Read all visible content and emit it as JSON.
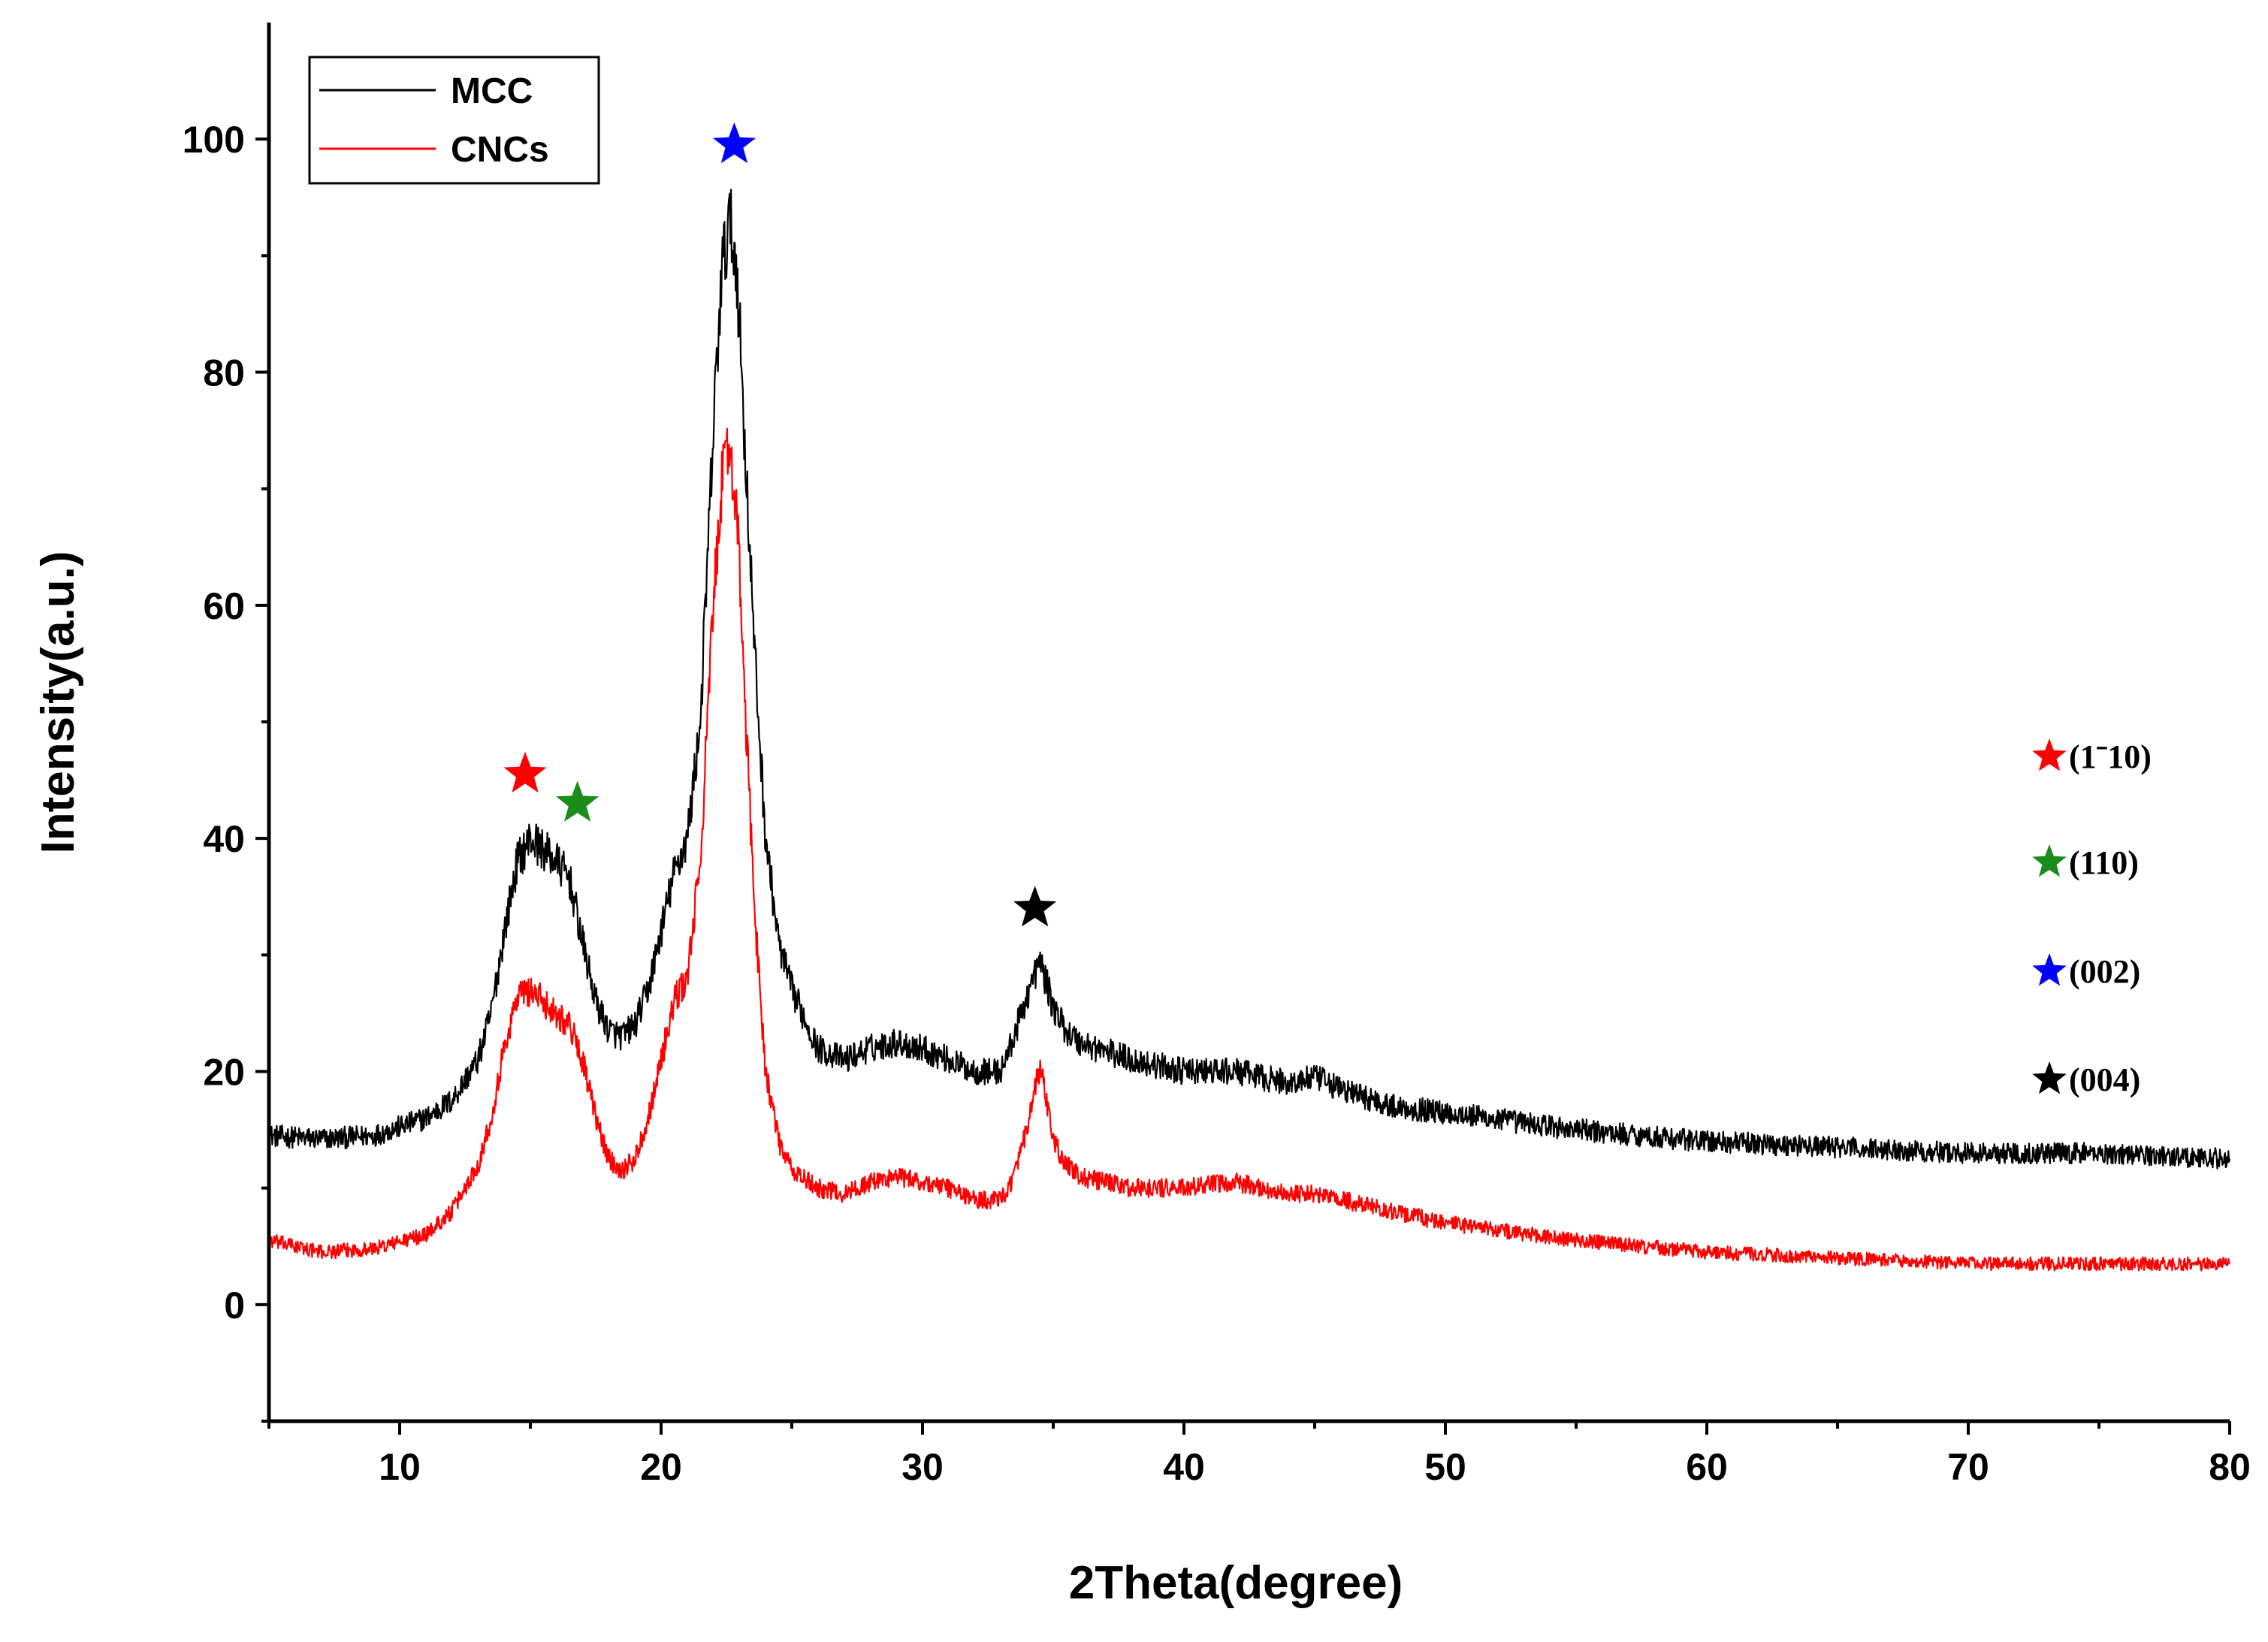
{
  "chart_data": {
    "type": "line",
    "title": "",
    "xlabel": "2Theta(degree)",
    "ylabel": "Intensity(a.u.)",
    "xlim": [
      5,
      80
    ],
    "ylim": [
      -10,
      110
    ],
    "xticks": [
      10,
      20,
      30,
      40,
      50,
      60,
      70,
      80
    ],
    "yticks": [
      0,
      20,
      40,
      60,
      80,
      100
    ],
    "grid": false,
    "legend_position": "top-left",
    "series": [
      {
        "name": "MCC",
        "color": "#000000",
        "x": [
          5,
          7,
          9,
          11,
          12,
          13,
          13.5,
          14,
          14.5,
          15,
          15.5,
          16,
          16.5,
          17,
          17.5,
          18,
          18.5,
          19,
          19.5,
          20,
          20.5,
          21,
          21.5,
          22,
          22.3,
          22.6,
          22.9,
          23.2,
          23.6,
          24,
          24.5,
          25,
          26,
          27,
          28,
          29,
          30,
          31,
          32,
          33,
          33.5,
          34,
          34.5,
          35,
          35.5,
          36,
          38,
          40,
          42,
          44,
          45,
          46,
          48,
          50,
          55,
          60,
          65,
          70,
          75,
          80
        ],
        "y": [
          14.5,
          14.2,
          14.5,
          16,
          17.5,
          21,
          25,
          32,
          38,
          40,
          39,
          38,
          36.5,
          31,
          26,
          23.5,
          23,
          24,
          27,
          32,
          37,
          40,
          50,
          75,
          88,
          93,
          89,
          74,
          55,
          40,
          31,
          27,
          22,
          21,
          22,
          22.5,
          22,
          21,
          20,
          20,
          23,
          26.5,
          29.5,
          25.5,
          23.5,
          22.5,
          21,
          20,
          20,
          19,
          19.5,
          18.5,
          17,
          16.5,
          15,
          14,
          13.5,
          13,
          13,
          12.5
        ]
      },
      {
        "name": "CNCs",
        "color": "#ff0000",
        "x": [
          5,
          7,
          9,
          11,
          12,
          13,
          13.5,
          14,
          14.5,
          15,
          15.5,
          16,
          16.5,
          17,
          17.5,
          18,
          18.5,
          19,
          19.5,
          20,
          20.5,
          21,
          21.5,
          22,
          22.3,
          22.6,
          22.9,
          23.2,
          23.6,
          24,
          24.5,
          25,
          26,
          27,
          28,
          29,
          30,
          31,
          32,
          33,
          33.5,
          34,
          34.5,
          35,
          35.5,
          36,
          38,
          40,
          42,
          44,
          45,
          46,
          48,
          50,
          55,
          60,
          65,
          70,
          75,
          80
        ],
        "y": [
          5.5,
          4.5,
          4.8,
          6,
          8,
          12,
          16,
          22,
          26.5,
          27,
          26,
          25,
          24,
          21,
          16,
          12.5,
          11.5,
          12.5,
          16,
          21,
          26,
          28,
          38,
          60,
          70,
          74,
          68,
          52,
          33,
          20,
          14,
          11.5,
          10,
          9.5,
          10.5,
          11,
          10.5,
          10,
          9,
          9,
          11,
          15,
          20.5,
          14,
          12,
          11,
          10,
          10,
          10.5,
          9.5,
          9.5,
          9,
          8,
          7,
          5.5,
          4.5,
          4,
          3.5,
          3.5,
          3.5
        ]
      }
    ],
    "peak_markers": [
      {
        "x": 14.8,
        "y": 45.5,
        "color": "#ff0000"
      },
      {
        "x": 16.8,
        "y": 43,
        "color": "#1a8c1a"
      },
      {
        "x": 22.8,
        "y": 99.5,
        "color": "#0000ff"
      },
      {
        "x": 34.3,
        "y": 34,
        "color": "#000000"
      }
    ],
    "miller_legend": [
      {
        "label": "(1ˉ10)",
        "color": "#ff0000"
      },
      {
        "label": "(110)",
        "color": "#1a8c1a"
      },
      {
        "label": "(002)",
        "color": "#0000ff"
      },
      {
        "label": "(004)",
        "color": "#000000"
      }
    ]
  }
}
